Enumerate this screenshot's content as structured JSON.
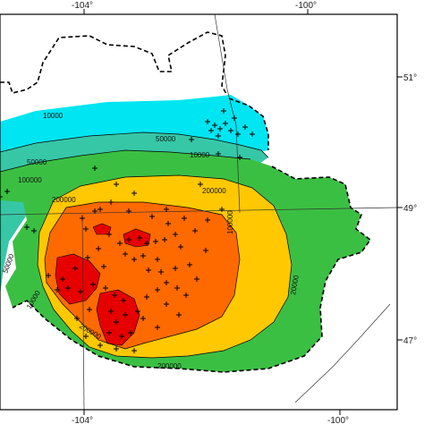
{
  "map": {
    "colors": {
      "frame": "#000000",
      "outside": "#ffffff",
      "band_cyan": "#00e5f2",
      "band_teal": "#36c7a6",
      "band_green": "#3bbf43",
      "band_yellow": "#ffc800",
      "band_orange": "#ff6a00",
      "band_red": "#e60000",
      "well_marker": "#000000"
    },
    "top_ticks": [
      "-104°",
      "-100°"
    ],
    "bottom_ticks": [
      "-104°",
      "-100°"
    ],
    "right_ticks": [
      "51°",
      "49°",
      "47°"
    ],
    "contour_labels": [
      {
        "text": "10000"
      },
      {
        "text": "50000"
      },
      {
        "text": "10000"
      },
      {
        "text": "50000"
      },
      {
        "text": "100000"
      },
      {
        "text": "200000"
      },
      {
        "text": "200000"
      },
      {
        "text": "100000"
      },
      {
        "text": "50000"
      },
      {
        "text": "10000"
      },
      {
        "text": "200000"
      },
      {
        "text": "20000"
      },
      {
        "text": "200000"
      }
    ]
  }
}
